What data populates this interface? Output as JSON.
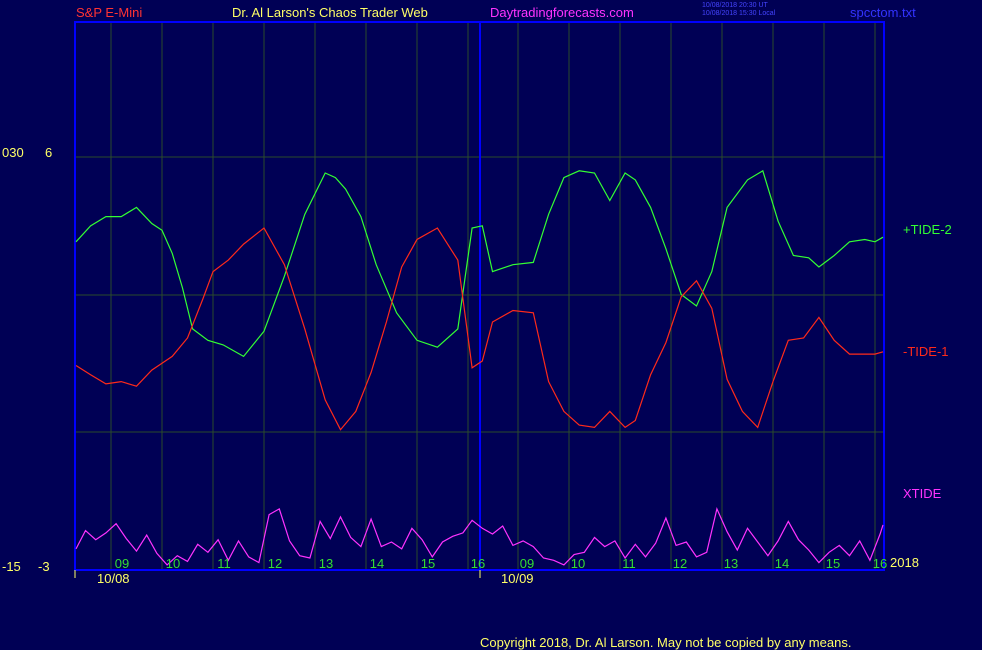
{
  "header": {
    "symbol": "S&P E-Mini",
    "site_title": "Dr. Al Larson's Chaos Trader Web",
    "site_url": "Daytradingforecasts.com",
    "timestamp_ut": "10/08/2018 20:30 UT",
    "timestamp_local": "10/08/2018 15:30 Local",
    "file_name": "spcctom.txt"
  },
  "left_axis": {
    "upper_label_a": "030",
    "upper_label_b": "6",
    "lower_label_a": "-15",
    "lower_label_b": "-3"
  },
  "footer": {
    "year": "2018",
    "copyright": "Copyright 2018, Dr. Al Larson. May not be copied by any means."
  },
  "colors": {
    "background": "#000055",
    "frame": "#0000ff",
    "grid": "#2a4a2a",
    "tide_plus": "#33ff33",
    "tide_minus": "#ff2a1a",
    "xtide": "#ff33ff",
    "hour_labels": "#33dd33",
    "dates": "#ffff66"
  },
  "chart_data": {
    "type": "line",
    "x_unit": "hour of trading day",
    "days": [
      {
        "date": "10/08",
        "hours": [
          "09",
          "10",
          "11",
          "12",
          "13",
          "14",
          "15",
          "16"
        ]
      },
      {
        "date": "10/09",
        "hours": [
          "09",
          "10",
          "11",
          "12",
          "13",
          "14",
          "15",
          "16"
        ]
      }
    ],
    "hour_tick_labels": [
      "09",
      "10",
      "11",
      "12",
      "13",
      "14",
      "15",
      "16",
      "09",
      "10",
      "11",
      "12",
      "13",
      "14",
      "15",
      "16"
    ],
    "y_range_tide": [
      -6,
      6
    ],
    "series": [
      {
        "name": "+TIDE-2",
        "color": "#33ff33",
        "x": [
          8.3,
          8.6,
          8.9,
          9.2,
          9.5,
          9.8,
          10.0,
          10.2,
          10.4,
          10.6,
          10.9,
          11.2,
          11.6,
          12.0,
          12.4,
          12.8,
          13.2,
          13.4,
          13.6,
          13.9,
          14.2,
          14.6,
          15.0,
          15.4,
          15.8,
          16.1,
          16.3,
          16.5,
          16.9,
          17.3,
          17.6,
          17.9,
          18.2,
          18.5,
          18.8,
          19.1,
          19.3,
          19.6,
          19.9,
          20.2,
          20.5,
          20.8,
          21.1,
          21.5,
          21.8,
          22.1,
          22.4,
          22.7,
          22.9,
          23.2,
          23.5,
          23.8,
          24.0,
          24.2
        ],
        "values": [
          2.3,
          3.0,
          3.4,
          3.4,
          3.8,
          3.1,
          2.8,
          1.8,
          0.3,
          -1.5,
          -2.0,
          -2.2,
          -2.7,
          -1.6,
          0.8,
          3.5,
          5.3,
          5.1,
          4.6,
          3.4,
          1.3,
          -0.8,
          -2.0,
          -2.3,
          -1.5,
          2.9,
          3.0,
          1.0,
          1.3,
          1.4,
          3.5,
          5.1,
          5.4,
          5.3,
          4.1,
          5.3,
          5.0,
          3.8,
          2.0,
          0.0,
          -0.5,
          1.0,
          3.8,
          5.0,
          5.4,
          3.2,
          1.7,
          1.6,
          1.2,
          1.7,
          2.3,
          2.4,
          2.3,
          2.5
        ]
      },
      {
        "name": "-TIDE-1",
        "color": "#ff2a1a",
        "x": [
          8.3,
          8.6,
          8.9,
          9.2,
          9.5,
          9.8,
          10.0,
          10.2,
          10.5,
          10.8,
          11.0,
          11.3,
          11.6,
          12.0,
          12.4,
          12.8,
          13.2,
          13.5,
          13.8,
          14.1,
          14.4,
          14.7,
          15.0,
          15.4,
          15.8,
          16.1,
          16.3,
          16.5,
          16.9,
          17.3,
          17.6,
          17.9,
          18.2,
          18.5,
          18.8,
          19.1,
          19.3,
          19.6,
          19.9,
          20.2,
          20.5,
          20.8,
          21.1,
          21.4,
          21.7,
          22.0,
          22.3,
          22.6,
          22.9,
          23.2,
          23.5,
          23.8,
          24.0,
          24.2
        ],
        "values": [
          -3.1,
          -3.5,
          -3.9,
          -3.8,
          -4.0,
          -3.3,
          -3.0,
          -2.7,
          -1.9,
          -0.2,
          1.0,
          1.5,
          2.2,
          2.9,
          1.3,
          -1.5,
          -4.6,
          -5.9,
          -5.1,
          -3.4,
          -1.2,
          1.2,
          2.4,
          2.9,
          1.5,
          -3.2,
          -2.9,
          -1.2,
          -0.7,
          -0.8,
          -3.8,
          -5.1,
          -5.7,
          -5.8,
          -5.1,
          -5.8,
          -5.5,
          -3.5,
          -2.1,
          -0.1,
          0.6,
          -0.6,
          -3.7,
          -5.1,
          -5.8,
          -3.8,
          -2.0,
          -1.9,
          -1.0,
          -2.0,
          -2.6,
          -2.6,
          -2.6,
          -2.5
        ]
      },
      {
        "name": "XTIDE",
        "color": "#ff33ff",
        "x": [
          8.3,
          8.5,
          8.7,
          8.9,
          9.1,
          9.3,
          9.5,
          9.7,
          9.9,
          10.1,
          10.3,
          10.5,
          10.7,
          10.9,
          11.1,
          11.3,
          11.5,
          11.7,
          11.9,
          12.1,
          12.3,
          12.5,
          12.7,
          12.9,
          13.1,
          13.3,
          13.5,
          13.7,
          13.9,
          14.1,
          14.3,
          14.5,
          14.7,
          14.9,
          15.1,
          15.3,
          15.5,
          15.7,
          15.9,
          16.1,
          16.3,
          16.5,
          16.7,
          16.9,
          17.1,
          17.3,
          17.5,
          17.7,
          17.9,
          18.1,
          18.3,
          18.5,
          18.7,
          18.9,
          19.1,
          19.3,
          19.5,
          19.7,
          19.9,
          20.1,
          20.3,
          20.5,
          20.7,
          20.9,
          21.1,
          21.3,
          21.5,
          21.7,
          21.9,
          22.1,
          22.3,
          22.5,
          22.7,
          22.9,
          23.1,
          23.3,
          23.5,
          23.7,
          23.9,
          24.1,
          24.2
        ],
        "values": [
          -1.2,
          0.4,
          -0.4,
          0.2,
          1.0,
          -0.3,
          -1.4,
          0.0,
          -1.6,
          -2.6,
          -1.8,
          -2.3,
          -0.8,
          -1.5,
          -0.4,
          -2.2,
          -0.5,
          -1.9,
          -2.4,
          1.8,
          2.3,
          -0.5,
          -1.8,
          -2.0,
          1.2,
          -0.3,
          1.6,
          -0.2,
          -1.0,
          1.4,
          -1.0,
          -0.6,
          -1.2,
          0.6,
          -0.4,
          -1.9,
          -0.6,
          -0.1,
          0.2,
          1.3,
          0.6,
          0.1,
          0.8,
          -0.9,
          -0.5,
          -1.0,
          -2.0,
          -2.2,
          -2.6,
          -1.7,
          -1.5,
          -0.2,
          -1.0,
          -0.5,
          -2.0,
          -0.8,
          -1.9,
          -0.7,
          1.5,
          -0.9,
          -0.6,
          -1.9,
          -1.5,
          2.3,
          0.3,
          -1.3,
          0.6,
          -0.6,
          -1.8,
          -0.5,
          1.2,
          -0.4,
          -1.3,
          -2.4,
          -1.5,
          -0.9,
          -1.8,
          -0.5,
          -2.2,
          0.1,
          0.9
        ]
      }
    ]
  }
}
